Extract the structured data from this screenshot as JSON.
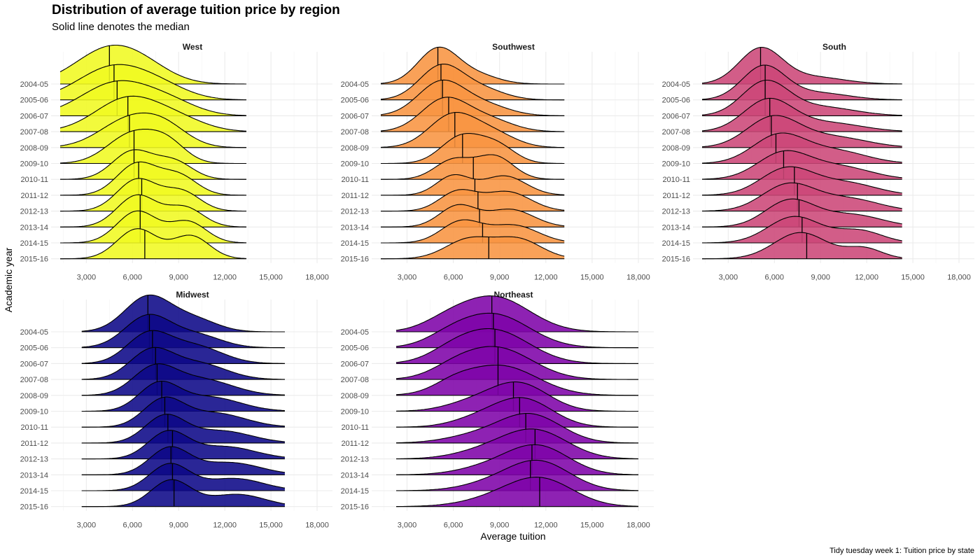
{
  "chart_data": {
    "type": "ridgeline",
    "title": "Distribution of average tuition price by region",
    "subtitle": "Solid line denotes the median",
    "xlabel": "Average tuition",
    "ylabel": "Academic year",
    "caption": "Tidy tuesday week 1: Tuition price by state",
    "x_ticks": [
      3000,
      6000,
      9000,
      12000,
      15000,
      18000
    ],
    "x_tick_labels": [
      "3,000",
      "6,000",
      "9,000",
      "12,000",
      "15,000",
      "18,000"
    ],
    "xlim": [
      800,
      19000
    ],
    "years": [
      "2004-05",
      "2005-06",
      "2006-07",
      "2007-08",
      "2008-09",
      "2009-10",
      "2010-11",
      "2011-12",
      "2012-13",
      "2013-14",
      "2014-15",
      "2015-16"
    ],
    "grid": true,
    "legend": "none",
    "panels": [
      {
        "region": "West",
        "color": "#F0F921",
        "range": [
          1300,
          13400
        ],
        "medians": [
          4500,
          4800,
          5000,
          5700,
          5800,
          6100,
          6100,
          6400,
          6600,
          6500,
          6500,
          6800
        ],
        "peaks": [
          [
            [
              4500,
              2200,
              1.0
            ],
            [
              7000,
              1800,
              0.25
            ]
          ],
          [
            [
              4800,
              2300,
              0.95
            ],
            [
              8000,
              1800,
              0.25
            ]
          ],
          [
            [
              5000,
              2300,
              0.95
            ],
            [
              8500,
              1800,
              0.3
            ]
          ],
          [
            [
              5700,
              2100,
              0.95
            ],
            [
              9000,
              1800,
              0.3
            ]
          ],
          [
            [
              5800,
              1900,
              0.8
            ],
            [
              8200,
              1500,
              0.45
            ]
          ],
          [
            [
              6000,
              1600,
              0.85
            ],
            [
              8300,
              1200,
              0.5
            ]
          ],
          [
            [
              6000,
              1300,
              0.8
            ],
            [
              8700,
              1200,
              0.5
            ]
          ],
          [
            [
              6300,
              1300,
              0.9
            ],
            [
              9000,
              1200,
              0.55
            ]
          ],
          [
            [
              6300,
              1300,
              0.9
            ],
            [
              9200,
              1200,
              0.55
            ]
          ],
          [
            [
              6300,
              1300,
              0.9
            ],
            [
              9400,
              1200,
              0.55
            ]
          ],
          [
            [
              6300,
              1300,
              0.9
            ],
            [
              9600,
              1200,
              0.6
            ]
          ],
          [
            [
              6300,
              1300,
              0.85
            ],
            [
              9800,
              1200,
              0.65
            ]
          ]
        ]
      },
      {
        "region": "Southwest",
        "color": "#F89441",
        "range": [
          1300,
          13200
        ],
        "medians": [
          5000,
          5200,
          5300,
          5700,
          6100,
          6600,
          7300,
          7400,
          7600,
          7700,
          7900,
          8300
        ],
        "peaks": [
          [
            [
              5000,
              1300,
              1.0
            ],
            [
              7500,
              1400,
              0.25
            ]
          ],
          [
            [
              5200,
              1400,
              0.95
            ],
            [
              7800,
              1500,
              0.3
            ]
          ],
          [
            [
              5200,
              1500,
              0.95
            ],
            [
              8000,
              1600,
              0.3
            ]
          ],
          [
            [
              5400,
              1500,
              0.9
            ],
            [
              8200,
              1600,
              0.35
            ]
          ],
          [
            [
              5900,
              1500,
              0.9
            ],
            [
              8500,
              1500,
              0.4
            ]
          ],
          [
            [
              6500,
              1300,
              0.75
            ],
            [
              8800,
              1200,
              0.5
            ]
          ],
          [
            [
              6000,
              1200,
              0.55
            ],
            [
              8700,
              1200,
              0.65
            ]
          ],
          [
            [
              6000,
              1100,
              0.55
            ],
            [
              9300,
              1400,
              0.55
            ]
          ],
          [
            [
              6300,
              1200,
              0.55
            ],
            [
              9500,
              1500,
              0.55
            ]
          ],
          [
            [
              6300,
              1200,
              0.6
            ],
            [
              9700,
              1500,
              0.5
            ]
          ],
          [
            [
              6500,
              1300,
              0.6
            ],
            [
              9900,
              1600,
              0.5
            ]
          ],
          [
            [
              7000,
              1500,
              0.55
            ],
            [
              10200,
              1500,
              0.55
            ]
          ]
        ]
      },
      {
        "region": "South",
        "color": "#CC4778",
        "range": [
          1300,
          14300
        ],
        "medians": [
          5100,
          5400,
          5400,
          5700,
          5800,
          6100,
          6600,
          7300,
          7500,
          7600,
          7800,
          8100
        ],
        "peaks": [
          [
            [
              5100,
              1400,
              1.0
            ],
            [
              8500,
              2000,
              0.2
            ]
          ],
          [
            [
              5300,
              1400,
              0.95
            ],
            [
              8800,
              2000,
              0.2
            ]
          ],
          [
            [
              5400,
              1500,
              0.95
            ],
            [
              9000,
              2200,
              0.25
            ]
          ],
          [
            [
              5600,
              1600,
              0.9
            ],
            [
              9500,
              2200,
              0.25
            ]
          ],
          [
            [
              5900,
              1700,
              0.85
            ],
            [
              9800,
              2200,
              0.3
            ]
          ],
          [
            [
              6300,
              1700,
              0.8
            ],
            [
              10000,
              2000,
              0.35
            ]
          ],
          [
            [
              6600,
              1700,
              0.75
            ],
            [
              10300,
              2000,
              0.35
            ]
          ],
          [
            [
              6800,
              1700,
              0.75
            ],
            [
              10600,
              2000,
              0.35
            ]
          ],
          [
            [
              6900,
              1700,
              0.75
            ],
            [
              10800,
              2000,
              0.35
            ]
          ],
          [
            [
              7000,
              1600,
              0.75
            ],
            [
              11000,
              2000,
              0.35
            ]
          ],
          [
            [
              7300,
              1700,
              0.75
            ],
            [
              11500,
              1500,
              0.35
            ]
          ],
          [
            [
              7700,
              1700,
              0.75
            ],
            [
              11800,
              1200,
              0.3
            ]
          ]
        ]
      },
      {
        "region": "Midwest",
        "color": "#0D0887",
        "range": [
          2700,
          15900
        ],
        "medians": [
          7000,
          7100,
          7300,
          7500,
          7600,
          7900,
          8100,
          8300,
          8600,
          8500,
          8600,
          8700
        ],
        "peaks": [
          [
            [
              7000,
              1500,
              1.0
            ],
            [
              10000,
              1500,
              0.35
            ]
          ],
          [
            [
              7000,
              1500,
              0.9
            ],
            [
              10200,
              1600,
              0.35
            ]
          ],
          [
            [
              7000,
              1400,
              0.8
            ],
            [
              10000,
              1800,
              0.5
            ]
          ],
          [
            [
              7200,
              1400,
              0.8
            ],
            [
              10300,
              1800,
              0.45
            ]
          ],
          [
            [
              7400,
              1400,
              0.75
            ],
            [
              10500,
              2000,
              0.45
            ]
          ],
          [
            [
              7700,
              1300,
              0.75
            ],
            [
              11000,
              2000,
              0.4
            ]
          ],
          [
            [
              8000,
              1300,
              0.75
            ],
            [
              11300,
              2000,
              0.4
            ]
          ],
          [
            [
              8100,
              1300,
              0.75
            ],
            [
              11700,
              2000,
              0.35
            ]
          ],
          [
            [
              8300,
              1300,
              0.75
            ],
            [
              12000,
              2000,
              0.35
            ]
          ],
          [
            [
              8400,
              1300,
              0.75
            ],
            [
              12300,
              2000,
              0.35
            ]
          ],
          [
            [
              8400,
              1300,
              0.75
            ],
            [
              12600,
              1900,
              0.35
            ]
          ],
          [
            [
              8500,
              1300,
              0.75
            ],
            [
              12800,
              1800,
              0.35
            ]
          ]
        ]
      },
      {
        "region": "Northeast",
        "color": "#7E03A8",
        "range": [
          2300,
          18000
        ],
        "medians": [
          8500,
          8600,
          8700,
          8900,
          8900,
          9900,
          10300,
          10700,
          11300,
          11100,
          11000,
          11600
        ],
        "peaks": [
          [
            [
              8600,
              2300,
              1.0
            ],
            [
              5500,
              1500,
              0.2
            ]
          ],
          [
            [
              8600,
              2300,
              0.95
            ],
            [
              5700,
              1500,
              0.2
            ]
          ],
          [
            [
              8600,
              2300,
              0.95
            ],
            [
              5900,
              1500,
              0.2
            ]
          ],
          [
            [
              8800,
              2300,
              0.9
            ],
            [
              6000,
              1500,
              0.2
            ]
          ],
          [
            [
              9000,
              2400,
              0.85
            ],
            [
              6000,
              1300,
              0.2
            ]
          ],
          [
            [
              10200,
              1900,
              0.8
            ],
            [
              7000,
              1700,
              0.2
            ]
          ],
          [
            [
              10500,
              1900,
              0.8
            ],
            [
              7500,
              1700,
              0.2
            ]
          ],
          [
            [
              11000,
              2000,
              0.8
            ],
            [
              7500,
              2000,
              0.2
            ]
          ],
          [
            [
              11300,
              2100,
              0.8
            ],
            [
              8000,
              2000,
              0.2
            ]
          ],
          [
            [
              11500,
              2000,
              0.8
            ],
            [
              8300,
              2000,
              0.2
            ]
          ],
          [
            [
              11600,
              2000,
              0.8
            ],
            [
              8600,
              2000,
              0.2
            ]
          ],
          [
            [
              11700,
              2100,
              0.75
            ],
            [
              8800,
              2200,
              0.2
            ]
          ]
        ]
      }
    ]
  }
}
